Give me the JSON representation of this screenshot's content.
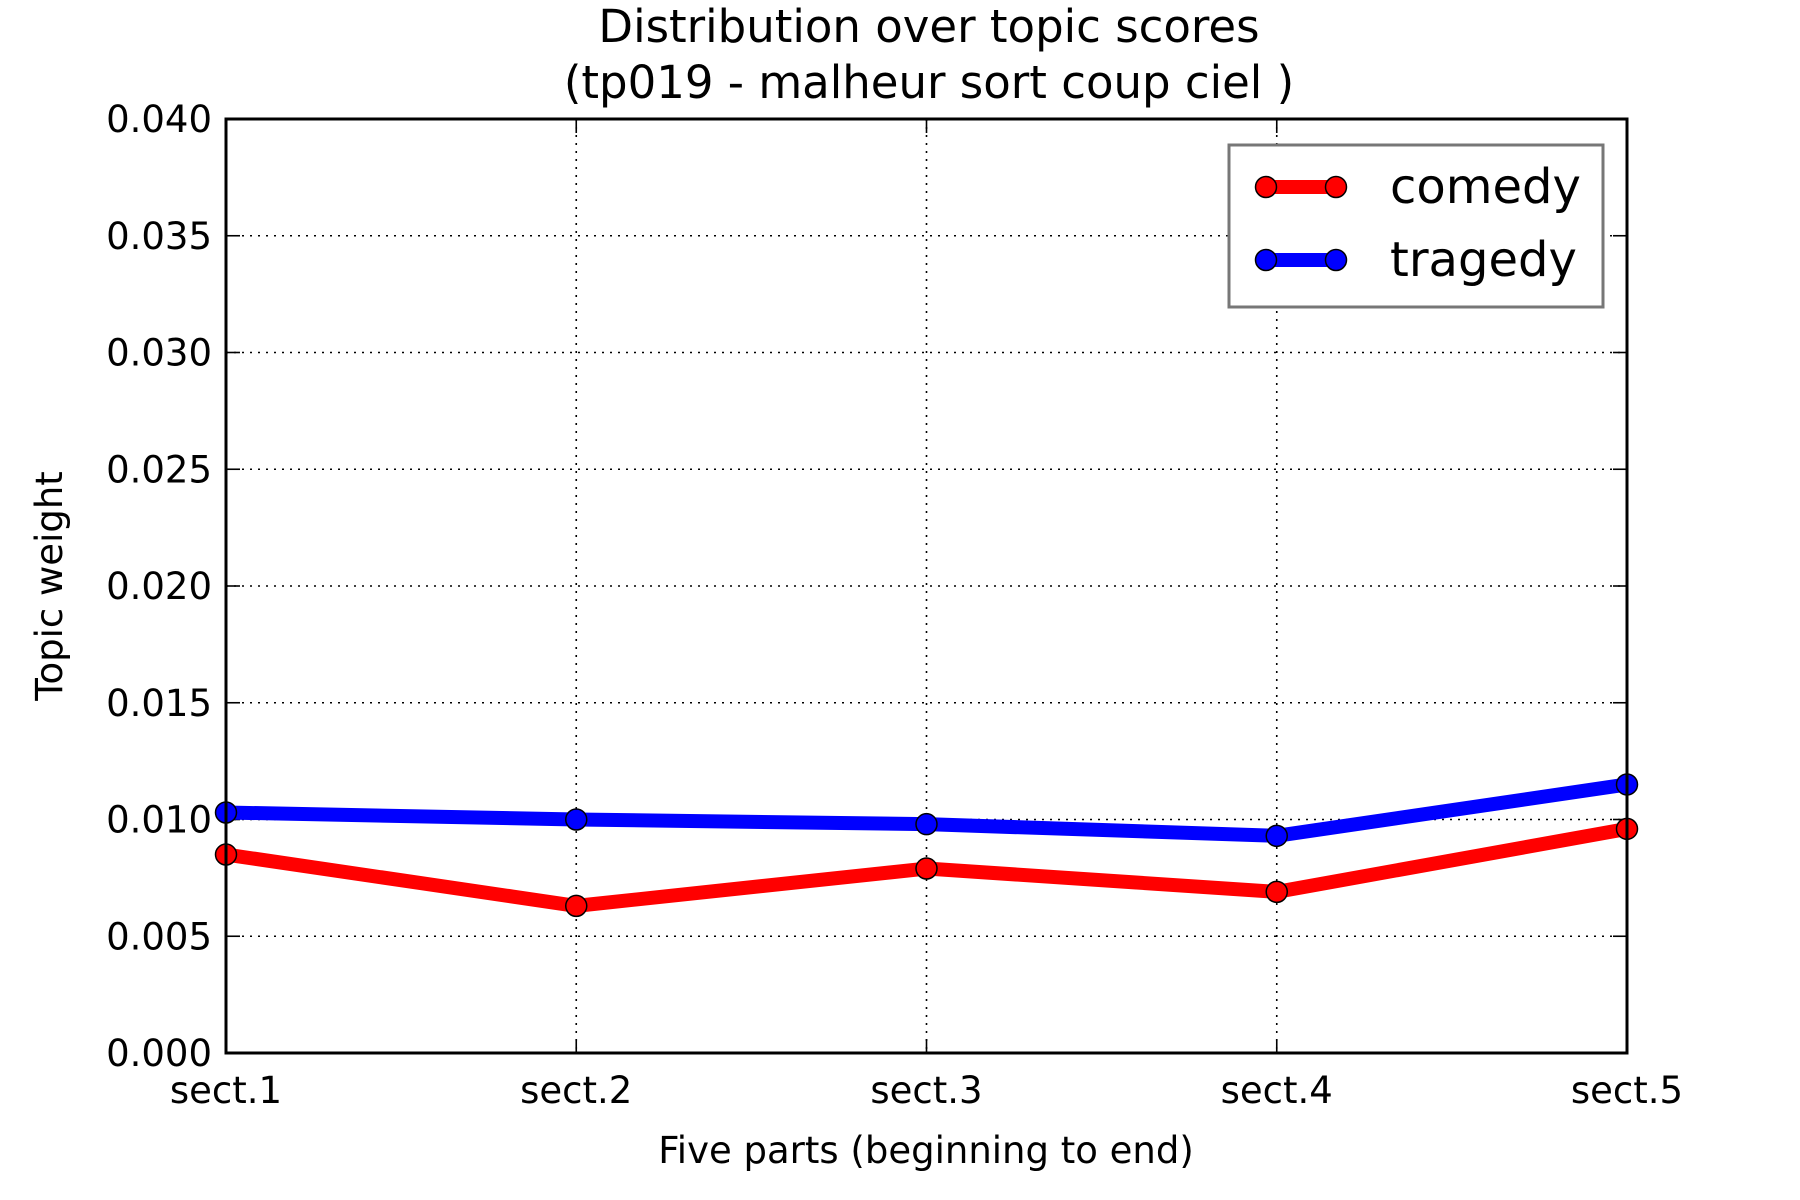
{
  "chart_data": {
    "type": "line",
    "title_line1": "Distribution over topic scores",
    "title_line2": "(tp019 - malheur sort coup ciel )",
    "xlabel": "Five parts (beginning to end)",
    "ylabel": "Topic weight",
    "categories": [
      "sect.1",
      "sect.2",
      "sect.3",
      "sect.4",
      "sect.5"
    ],
    "ylim": [
      0,
      0.04
    ],
    "yticks": [
      0.0,
      0.005,
      0.01,
      0.015,
      0.02,
      0.025,
      0.03,
      0.035,
      0.04
    ],
    "ytick_labels": [
      "0.000",
      "0.005",
      "0.010",
      "0.015",
      "0.020",
      "0.025",
      "0.030",
      "0.035",
      "0.040"
    ],
    "grid": true,
    "legend_position": "top-right",
    "series": [
      {
        "name": "comedy",
        "color": "#ff0000",
        "values": [
          0.0085,
          0.0063,
          0.0079,
          0.0069,
          0.0096
        ]
      },
      {
        "name": "tragedy",
        "color": "#0000ff",
        "values": [
          0.0103,
          0.01,
          0.0098,
          0.0093,
          0.0115
        ]
      }
    ]
  }
}
